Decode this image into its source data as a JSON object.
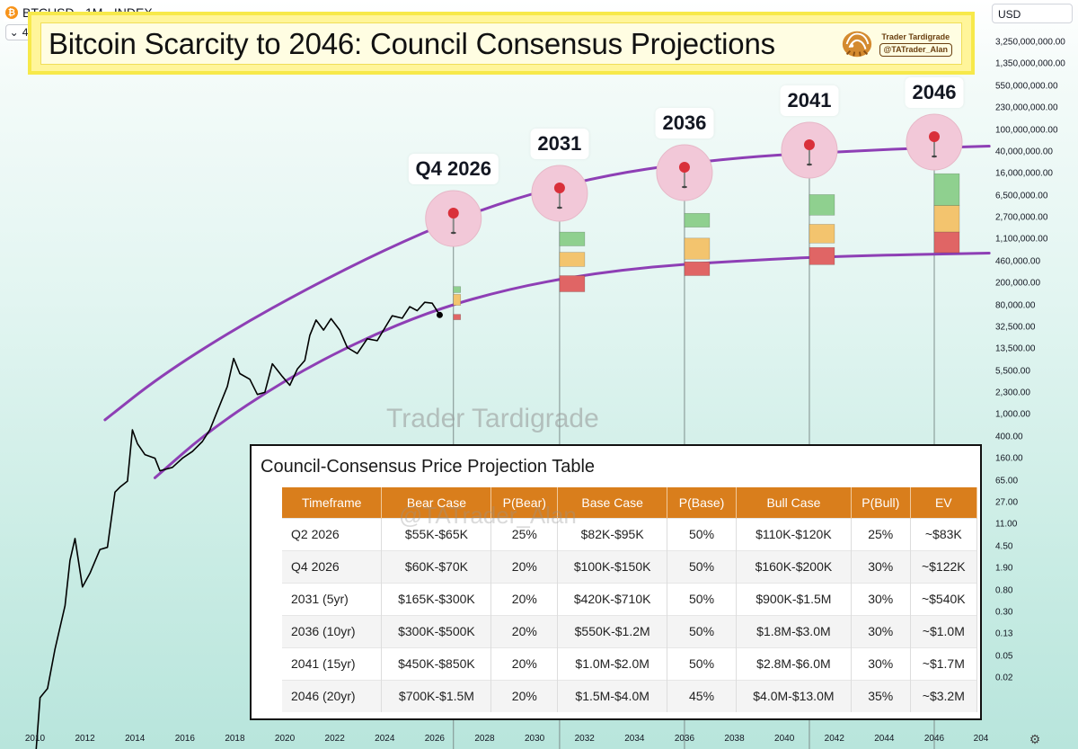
{
  "header": {
    "symbol": "BTCUSD · 1M · INDEX",
    "indicator_count": "4",
    "coin_glyph": "₿"
  },
  "banner": {
    "title": "Bitcoin Scarcity to 2046: Council Consensus Projections",
    "logo_line1": "Trader Tardigrade",
    "logo_line2": "@TATrader_Alan"
  },
  "price_scale": {
    "currency": "USD",
    "ticks": [
      "3,250,000,000.00",
      "1,350,000,000.00",
      "550,000,000.00",
      "230,000,000.00",
      "100,000,000.00",
      "40,000,000.00",
      "16,000,000.00",
      "6,500,000.00",
      "2,700,000.00",
      "1,100,000.00",
      "460,000.00",
      "200,000.00",
      "80,000.00",
      "32,500.00",
      "13,500.00",
      "5,500.00",
      "2,300.00",
      "1,000.00",
      "400.00",
      "160.00",
      "65.00",
      "27.00",
      "11.00",
      "4.50",
      "1.90",
      "0.80",
      "0.30",
      "0.13",
      "0.05",
      "0.02"
    ]
  },
  "time_scale": {
    "ticks": [
      "2010",
      "2012",
      "2014",
      "2016",
      "2018",
      "2020",
      "2022",
      "2024",
      "2026",
      "2028",
      "2030",
      "2032",
      "2034",
      "2036",
      "2038",
      "2040",
      "2042",
      "2044",
      "2046",
      "204"
    ]
  },
  "watermark": "Trader Tardigrade",
  "table_watermark": "@TATrader_Alan",
  "colors": {
    "channel": "#8e3fb5",
    "price_line": "#000000",
    "bull": "#8fd08f",
    "base": "#f3c46e",
    "bear": "#e06565",
    "table_header": "#d97e1c",
    "marker_circle": "#f2c8d8",
    "pin": "#d9303a"
  },
  "chart_data": {
    "type": "line",
    "title": "Bitcoin Scarcity to 2046: Council Consensus Projections",
    "scale": "log",
    "ylim": [
      0.0075,
      8000000000
    ],
    "xlim": [
      2009.8,
      2049.3
    ],
    "price_series": {
      "name": "BTCUSD",
      "x": [
        2010.0,
        2010.2,
        2010.5,
        2010.8,
        2011.2,
        2011.4,
        2011.6,
        2011.9,
        2012.2,
        2012.6,
        2012.9,
        2013.2,
        2013.4,
        2013.7,
        2013.9,
        2014.1,
        2014.4,
        2014.8,
        2015.0,
        2015.5,
        2015.9,
        2016.3,
        2016.7,
        2017.0,
        2017.3,
        2017.7,
        2017.95,
        2018.2,
        2018.6,
        2018.9,
        2019.2,
        2019.5,
        2019.9,
        2020.2,
        2020.5,
        2020.8,
        2021.0,
        2021.25,
        2021.55,
        2021.85,
        2022.2,
        2022.5,
        2022.9,
        2023.3,
        2023.7,
        2024.0,
        2024.3,
        2024.7,
        2025.0,
        2025.3,
        2025.6,
        2025.9,
        2026.2
      ],
      "y": [
        0.003,
        0.05,
        0.07,
        0.3,
        1.5,
        8,
        18,
        3,
        5,
        12,
        13,
        100,
        120,
        150,
        1000,
        600,
        400,
        350,
        220,
        250,
        350,
        450,
        650,
        1000,
        2000,
        5000,
        14000,
        8000,
        6500,
        3700,
        4000,
        11500,
        7200,
        5200,
        9500,
        13000,
        33000,
        58000,
        40000,
        61000,
        40000,
        21000,
        16800,
        29000,
        27000,
        43000,
        68000,
        62000,
        95000,
        82000,
        112000,
        108000,
        70000
      ]
    },
    "channel_upper": {
      "name": "Upper channel",
      "x": [
        2012.8,
        2015,
        2018,
        2021,
        2024,
        2027,
        2030,
        2033,
        2036,
        2039,
        2042,
        2045,
        2048.2
      ],
      "y": [
        1450,
        7200,
        42000,
        195000,
        780000,
        2600000,
        6500000,
        12500000,
        19000000,
        25000000,
        29000000,
        33000000,
        36000000
      ]
    },
    "channel_lower": {
      "name": "Lower channel",
      "x": [
        2014.8,
        2017,
        2020,
        2023,
        2026,
        2029,
        2032,
        2035,
        2038,
        2041,
        2044,
        2048.2
      ],
      "y": [
        170,
        1000,
        6300,
        27000,
        85000,
        185000,
        310000,
        430000,
        510000,
        590000,
        640000,
        690000
      ]
    },
    "projection_zones": [
      {
        "label": "Q4 2026",
        "x": 2026.75,
        "bear": [
          60000,
          70000
        ],
        "base": [
          100000,
          150000
        ],
        "bull": [
          160000,
          200000
        ]
      },
      {
        "label": "2031",
        "x": 2031.0,
        "bear": [
          165000,
          300000
        ],
        "base": [
          420000,
          710000
        ],
        "bull": [
          900000,
          1500000
        ]
      },
      {
        "label": "2036",
        "x": 2036.0,
        "bear": [
          300000,
          500000
        ],
        "base": [
          550000,
          1200000
        ],
        "bull": [
          1800000,
          3000000
        ]
      },
      {
        "label": "2041",
        "x": 2041.0,
        "bear": [
          450000,
          850000
        ],
        "base": [
          1000000,
          2000000
        ],
        "bull": [
          2800000,
          6000000
        ]
      },
      {
        "label": "2046",
        "x": 2046.0,
        "bear": [
          700000,
          1500000
        ],
        "base": [
          1500000,
          4000000
        ],
        "bull": [
          4000000,
          13000000
        ]
      }
    ]
  },
  "table": {
    "title": "Council-Consensus Price Projection Table",
    "headers": [
      "Timeframe",
      "Bear Case",
      "P(Bear)",
      "Base Case",
      "P(Base)",
      "Bull Case",
      "P(Bull)",
      "EV"
    ],
    "rows": [
      [
        "Q2 2026",
        "$55K-$65K",
        "25%",
        "$82K-$95K",
        "50%",
        "$110K-$120K",
        "25%",
        "~$83K"
      ],
      [
        "Q4 2026",
        "$60K-$70K",
        "20%",
        "$100K-$150K",
        "50%",
        "$160K-$200K",
        "30%",
        "~$122K"
      ],
      [
        "2031 (5yr)",
        "$165K-$300K",
        "20%",
        "$420K-$710K",
        "50%",
        "$900K-$1.5M",
        "30%",
        "~$540K"
      ],
      [
        "2036 (10yr)",
        "$300K-$500K",
        "20%",
        "$550K-$1.2M",
        "50%",
        "$1.8M-$3.0M",
        "30%",
        "~$1.0M"
      ],
      [
        "2041 (15yr)",
        "$450K-$850K",
        "20%",
        "$1.0M-$2.0M",
        "50%",
        "$2.8M-$6.0M",
        "30%",
        "~$1.7M"
      ],
      [
        "2046 (20yr)",
        "$700K-$1.5M",
        "20%",
        "$1.5M-$4.0M",
        "45%",
        "$4.0M-$13.0M",
        "35%",
        "~$3.2M"
      ]
    ]
  }
}
